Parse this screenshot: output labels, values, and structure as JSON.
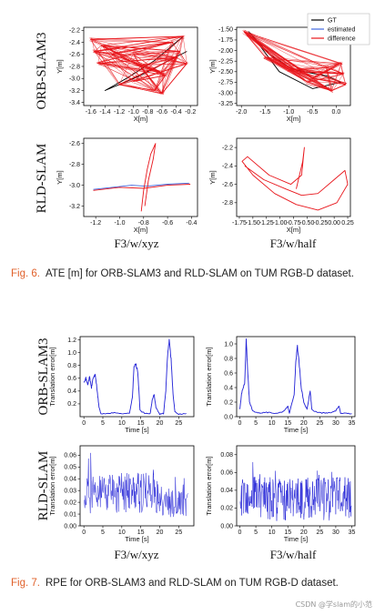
{
  "figure6": {
    "caption_label": "Fig. 6.",
    "caption_text": "ATE [m] for ORB-SLAM3 and RLD-SLAM on TUM RGB-D dataset.",
    "row_labels": [
      "ORB-SLAM3",
      "RLD-SLAM"
    ],
    "col_labels": [
      "F3/w/xyz",
      "F3/w/half"
    ],
    "legend": [
      {
        "label": "GT",
        "color": "#000000"
      },
      {
        "label": "estimated",
        "color": "#4169e1"
      },
      {
        "label": "difference",
        "color": "#e8151b"
      }
    ]
  },
  "figure7": {
    "caption_label": "Fig. 7.",
    "caption_text": "RPE for ORB-SLAM3 and RLD-SLAM on TUM RGB-D dataset.",
    "row_labels": [
      "ORB-SLAM3",
      "RLD-SLAM"
    ],
    "col_labels": [
      "F3/w/xyz",
      "F3/w/half"
    ]
  },
  "watermark": "CSDN @学slam的小范",
  "chart_data": [
    {
      "id": "ate-orb-xyz",
      "type": "line",
      "xlabel": "X[m]",
      "ylabel": "Y[m]",
      "xlim": [
        -1.7,
        -0.1
      ],
      "ylim": [
        -3.45,
        -2.15
      ],
      "xticks": [
        -1.6,
        -1.4,
        -1.2,
        -1.0,
        -0.8,
        -0.6,
        -0.4,
        -0.2
      ],
      "xticklabels": [
        "-1.6",
        "-1.4",
        "-1.2",
        "-1.0",
        "-0.8",
        "-0.6",
        "-0.4",
        "-0.2"
      ],
      "yticks": [
        -2.2,
        -2.4,
        -2.6,
        -2.8,
        -3.0,
        -3.2,
        -3.4
      ],
      "yticklabels": [
        "-2.2",
        "-2.4",
        "-2.6",
        "-2.8",
        "-3.0",
        "-3.2",
        "-3.4"
      ],
      "series": [
        {
          "color": "#000000",
          "points": [
            [
              -0.3,
              -2.3
            ],
            [
              -0.7,
              -2.7
            ],
            [
              -1.1,
              -3.0
            ],
            [
              -1.4,
              -3.2
            ],
            [
              -0.9,
              -2.95
            ],
            [
              -0.5,
              -2.7
            ],
            [
              -0.25,
              -2.55
            ]
          ]
        },
        {
          "color": "#e8151b",
          "points": [
            [
              -1.6,
              -2.35
            ],
            [
              -0.3,
              -2.3
            ],
            [
              -1.55,
              -2.55
            ],
            [
              -0.45,
              -2.4
            ],
            [
              -1.3,
              -2.6
            ],
            [
              -0.6,
              -2.9
            ],
            [
              -1.5,
              -2.75
            ],
            [
              -0.4,
              -2.65
            ],
            [
              -1.2,
              -3.1
            ],
            [
              -0.7,
              -3.2
            ],
            [
              -0.55,
              -2.95
            ],
            [
              -1.0,
              -3.05
            ],
            [
              -0.25,
              -2.75
            ],
            [
              -0.6,
              -3.25
            ],
            [
              -0.9,
              -2.8
            ],
            [
              -1.45,
              -2.45
            ],
            [
              -0.35,
              -2.55
            ],
            [
              -1.0,
              -2.6
            ]
          ]
        }
      ]
    },
    {
      "id": "ate-orb-half",
      "type": "line",
      "xlabel": "X[m]",
      "ylabel": "Y[m]",
      "xlim": [
        -2.1,
        0.3
      ],
      "ylim": [
        -3.3,
        -1.45
      ],
      "xticks": [
        -2.0,
        -1.5,
        -1.0,
        -0.5,
        0.0
      ],
      "xticklabels": [
        "-2.0",
        "-1.5",
        "-1.0",
        "-0.5",
        "0.0"
      ],
      "yticks": [
        -1.5,
        -1.75,
        -2.0,
        -2.25,
        -2.5,
        -2.75,
        -3.0,
        -3.25
      ],
      "yticklabels": [
        "-1.50",
        "-1.75",
        "-2.00",
        "-2.25",
        "-2.50",
        "-2.75",
        "-3.00",
        "-3.25"
      ],
      "series": [
        {
          "color": "#000000",
          "points": [
            [
              -1.85,
              -1.55
            ],
            [
              -1.4,
              -2.1
            ],
            [
              -0.9,
              -2.45
            ],
            [
              -0.2,
              -2.6
            ],
            [
              0.1,
              -2.75
            ],
            [
              -0.5,
              -2.9
            ],
            [
              -1.2,
              -2.5
            ],
            [
              -1.8,
              -1.6
            ]
          ]
        },
        {
          "color": "#e8151b",
          "points": [
            [
              -1.9,
              -1.6
            ],
            [
              -1.3,
              -2.2
            ],
            [
              -0.8,
              -2.5
            ],
            [
              0.15,
              -2.55
            ],
            [
              -0.2,
              -2.4
            ],
            [
              0.1,
              -2.3
            ],
            [
              -0.5,
              -2.65
            ],
            [
              0.2,
              -2.8
            ],
            [
              -0.1,
              -2.95
            ],
            [
              -0.6,
              -2.75
            ],
            [
              -1.0,
              -2.45
            ],
            [
              -1.5,
              -2.15
            ],
            [
              -1.95,
              -1.55
            ]
          ]
        }
      ]
    },
    {
      "id": "ate-rld-xyz",
      "type": "line",
      "xlabel": "X[m]",
      "ylabel": "Y[m]",
      "xlim": [
        -1.3,
        -0.35
      ],
      "ylim": [
        -3.3,
        -2.55
      ],
      "xticks": [
        -1.2,
        -1.0,
        -0.8,
        -0.6,
        -0.4
      ],
      "xticklabels": [
        "-1.2",
        "-1.0",
        "-0.8",
        "-0.6",
        "-0.4"
      ],
      "yticks": [
        -2.6,
        -2.8,
        -3.0,
        -3.2
      ],
      "yticklabels": [
        "-2.6",
        "-2.8",
        "-3.0",
        "-3.2"
      ],
      "series": [
        {
          "color": "#4169e1",
          "points": [
            [
              -1.22,
              -3.04
            ],
            [
              -0.9,
              -3.0
            ],
            [
              -0.78,
              -3.01
            ],
            [
              -0.6,
              -2.99
            ],
            [
              -0.42,
              -2.98
            ]
          ]
        },
        {
          "color": "#e8151b",
          "points": [
            [
              -1.22,
              -3.05
            ],
            [
              -1.0,
              -3.02
            ],
            [
              -0.8,
              -3.03
            ],
            [
              -0.6,
              -3.0
            ],
            [
              -0.41,
              -2.99
            ]
          ]
        },
        {
          "color": "#e8151b",
          "points": [
            [
              -0.82,
              -3.25
            ],
            [
              -0.8,
              -3.05
            ],
            [
              -0.77,
              -2.85
            ],
            [
              -0.74,
              -2.7
            ],
            [
              -0.7,
              -2.6
            ],
            [
              -0.72,
              -2.75
            ],
            [
              -0.76,
              -2.95
            ],
            [
              -0.79,
              -3.2
            ]
          ]
        }
      ]
    },
    {
      "id": "ate-rld-half",
      "type": "line",
      "xlabel": "X[m]",
      "ylabel": "Y[m]",
      "xlim": [
        -1.8,
        0.3
      ],
      "ylim": [
        -2.95,
        -2.1
      ],
      "xticks": [
        -1.75,
        -1.5,
        -1.25,
        -1.0,
        -0.75,
        -0.5,
        -0.25,
        0.0,
        0.25
      ],
      "xticklabels": [
        "-1.75",
        "-1.50",
        "-1.25",
        "-1.00",
        "-0.75",
        "-0.50",
        "-0.25",
        "0.00",
        "0.25"
      ],
      "yticks": [
        -2.2,
        -2.4,
        -2.6,
        -2.8
      ],
      "yticklabels": [
        "-2.2",
        "-2.4",
        "-2.6",
        "-2.8"
      ],
      "series": [
        {
          "color": "#e8151b",
          "points": [
            [
              -1.65,
              -2.4
            ],
            [
              -1.3,
              -2.55
            ],
            [
              -0.9,
              -2.65
            ],
            [
              -0.6,
              -2.72
            ],
            [
              -0.3,
              -2.7
            ],
            [
              0.0,
              -2.55
            ],
            [
              0.2,
              -2.45
            ],
            [
              0.25,
              -2.6
            ],
            [
              0.05,
              -2.8
            ],
            [
              -0.3,
              -2.88
            ],
            [
              -0.7,
              -2.82
            ],
            [
              -1.1,
              -2.7
            ],
            [
              -1.5,
              -2.5
            ],
            [
              -1.7,
              -2.35
            ],
            [
              -1.6,
              -2.3
            ],
            [
              -1.2,
              -2.5
            ],
            [
              -0.8,
              -2.6
            ],
            [
              -0.6,
              -2.5
            ],
            [
              -0.55,
              -2.2
            ],
            [
              -0.58,
              -2.35
            ],
            [
              -0.7,
              -2.65
            ]
          ]
        }
      ]
    },
    {
      "id": "rpe-orb-xyz",
      "type": "line",
      "xlabel": "Time [s]",
      "ylabel": "Translation error[m]",
      "xlim": [
        -1,
        29
      ],
      "ylim": [
        0,
        1.25
      ],
      "xticks": [
        0,
        5,
        10,
        15,
        20,
        25
      ],
      "xticklabels": [
        "0",
        "5",
        "10",
        "15",
        "20",
        "25"
      ],
      "yticks": [
        0.2,
        0.4,
        0.6,
        0.8,
        1.0,
        1.2
      ],
      "yticklabels": [
        "0.2",
        "0.4",
        "0.6",
        "0.8",
        "1.0",
        "1.2"
      ],
      "series": [
        {
          "name": "",
          "color": "#1f1fd6",
          "keypoints": [
            [
              0,
              0.55
            ],
            [
              0.5,
              0.6
            ],
            [
              1,
              0.5
            ],
            [
              1.5,
              0.62
            ],
            [
              2,
              0.45
            ],
            [
              2.4,
              0.6
            ],
            [
              3,
              0.66
            ],
            [
              3.5,
              0.4
            ],
            [
              4,
              0.15
            ],
            [
              4.5,
              0.04
            ],
            [
              6,
              0.05
            ],
            [
              8,
              0.06
            ],
            [
              10,
              0.05
            ],
            [
              12,
              0.05
            ],
            [
              12.8,
              0.3
            ],
            [
              13.2,
              0.78
            ],
            [
              13.7,
              0.82
            ],
            [
              14.2,
              0.7
            ],
            [
              14.8,
              0.1
            ],
            [
              16,
              0.05
            ],
            [
              17.5,
              0.05
            ],
            [
              18,
              0.25
            ],
            [
              18.5,
              0.35
            ],
            [
              19,
              0.15
            ],
            [
              20,
              0.04
            ],
            [
              21,
              0.05
            ],
            [
              21.6,
              0.4
            ],
            [
              22,
              0.9
            ],
            [
              22.5,
              1.2
            ],
            [
              23,
              0.9
            ],
            [
              23.5,
              0.35
            ],
            [
              24,
              0.08
            ],
            [
              25,
              0.04
            ],
            [
              27,
              0.05
            ]
          ]
        }
      ]
    },
    {
      "id": "rpe-orb-half",
      "type": "line",
      "xlabel": "Time [s]",
      "ylabel": "Translation error[m]",
      "xlim": [
        -1,
        36
      ],
      "ylim": [
        0,
        1.1
      ],
      "xticks": [
        0,
        5,
        10,
        15,
        20,
        25,
        30,
        35
      ],
      "xticklabels": [
        "0",
        "5",
        "10",
        "15",
        "20",
        "25",
        "30",
        "35"
      ],
      "yticks": [
        0.0,
        0.2,
        0.4,
        0.6,
        0.8,
        1.0
      ],
      "yticklabels": [
        "0.0",
        "0.2",
        "0.4",
        "0.6",
        "0.8",
        "1.0"
      ],
      "series": [
        {
          "name": "",
          "color": "#1f1fd6",
          "keypoints": [
            [
              0,
              0.1
            ],
            [
              0.5,
              0.3
            ],
            [
              1,
              0.4
            ],
            [
              1.5,
              0.45
            ],
            [
              2,
              1.05
            ],
            [
              2.5,
              0.6
            ],
            [
              3,
              0.2
            ],
            [
              4,
              0.08
            ],
            [
              6,
              0.05
            ],
            [
              8,
              0.06
            ],
            [
              10,
              0.05
            ],
            [
              12,
              0.05
            ],
            [
              14,
              0.08
            ],
            [
              15,
              0.15
            ],
            [
              15.5,
              0.05
            ],
            [
              17,
              0.3
            ],
            [
              17.5,
              0.75
            ],
            [
              18,
              0.97
            ],
            [
              18.6,
              0.7
            ],
            [
              19.2,
              0.4
            ],
            [
              20,
              0.2
            ],
            [
              21,
              0.1
            ],
            [
              22,
              0.35
            ],
            [
              22.5,
              0.1
            ],
            [
              24,
              0.06
            ],
            [
              26,
              0.05
            ],
            [
              28,
              0.05
            ],
            [
              30,
              0.08
            ],
            [
              31,
              0.15
            ],
            [
              31.5,
              0.05
            ],
            [
              33,
              0.05
            ],
            [
              35,
              0.04
            ]
          ]
        }
      ]
    },
    {
      "id": "rpe-rld-xyz",
      "type": "line",
      "xlabel": "Time [s]",
      "ylabel": "Translation error[m]",
      "xlim": [
        -1,
        29
      ],
      "ylim": [
        0,
        0.068
      ],
      "xticks": [
        0,
        5,
        10,
        15,
        20,
        25
      ],
      "xticklabels": [
        "0",
        "5",
        "10",
        "15",
        "20",
        "25"
      ],
      "yticks": [
        0.0,
        0.01,
        0.02,
        0.03,
        0.04,
        0.05,
        0.06
      ],
      "yticklabels": [
        "0.00",
        "0.01",
        "0.02",
        "0.03",
        "0.04",
        "0.05",
        "0.06"
      ],
      "series": [
        {
          "name": "",
          "color": "#1f1fd6",
          "noise_base": 0.028,
          "noise_amp": 0.035,
          "noise_decay_from": 20,
          "t_end": 27.5
        }
      ]
    },
    {
      "id": "rpe-rld-half",
      "type": "line",
      "xlabel": "Time [s]",
      "ylabel": "Translation error[m]",
      "xlim": [
        -1,
        36
      ],
      "ylim": [
        0,
        0.09
      ],
      "xticks": [
        0,
        5,
        10,
        15,
        20,
        25,
        30,
        35
      ],
      "xticklabels": [
        "0",
        "5",
        "10",
        "15",
        "20",
        "25",
        "30",
        "35"
      ],
      "yticks": [
        0.0,
        0.02,
        0.04,
        0.06,
        0.08
      ],
      "yticklabels": [
        "0.00",
        "0.02",
        "0.04",
        "0.06",
        "0.08"
      ],
      "series": [
        {
          "name": "",
          "color": "#1f1fd6",
          "noise_base": 0.03,
          "noise_amp": 0.05,
          "noise_decay_from": 40,
          "t_end": 35
        }
      ]
    }
  ]
}
